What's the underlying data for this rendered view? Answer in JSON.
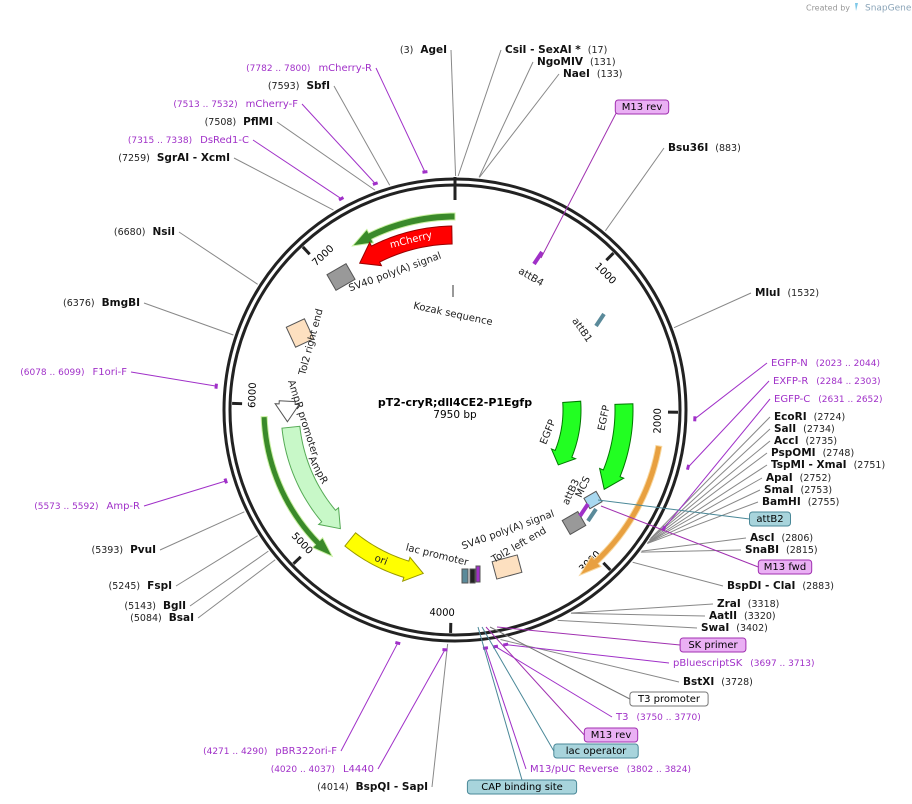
{
  "credit": {
    "prefix": "Created by",
    "brand": "SnapGene"
  },
  "plasmid": {
    "name": "pT2-cryR;dll4CE2-P1Egfp",
    "size": "7950 bp"
  },
  "ruler": [
    "1000",
    "2000",
    "3000",
    "4000",
    "5000",
    "6000",
    "7000"
  ],
  "sites": [
    {
      "name": "AgeI",
      "position": "(3)"
    },
    {
      "name": "CsiI  - SexAI *",
      "position": "(17)"
    },
    {
      "name": "NgoMIV",
      "position": "(131)"
    },
    {
      "name": "NaeI",
      "position": "(133)"
    },
    {
      "name": "Bsu36I",
      "position": "(883)"
    },
    {
      "name": "MluI",
      "position": "(1532)"
    },
    {
      "name": "EcoRI",
      "position": "(2724)"
    },
    {
      "name": "SalI",
      "position": "(2734)"
    },
    {
      "name": "AccI",
      "position": "(2735)"
    },
    {
      "name": "PspOMI",
      "position": "(2748)"
    },
    {
      "name": "TspMI  - XmaI",
      "position": "(2751)"
    },
    {
      "name": "ApaI",
      "position": "(2752)"
    },
    {
      "name": "SmaI",
      "position": "(2753)"
    },
    {
      "name": "BamHI",
      "position": "(2755)"
    },
    {
      "name": "AscI",
      "position": "(2806)"
    },
    {
      "name": "SnaBI",
      "position": "(2815)"
    },
    {
      "name": "BspDI  - ClaI",
      "position": "(2883)"
    },
    {
      "name": "ZraI",
      "position": "(3318)"
    },
    {
      "name": "AatII",
      "position": "(3320)"
    },
    {
      "name": "SwaI",
      "position": "(3402)"
    },
    {
      "name": "BstXI",
      "position": "(3728)"
    },
    {
      "name": "BspQI  - SapI",
      "position": "(4014)"
    },
    {
      "name": "BsaI",
      "position": "(5084)"
    },
    {
      "name": "BglI",
      "position": "(5143)"
    },
    {
      "name": "FspI",
      "position": "(5245)"
    },
    {
      "name": "PvuI",
      "position": "(5393)"
    },
    {
      "name": "BmgBI",
      "position": "(6376)"
    },
    {
      "name": "NsiI",
      "position": "(6680)"
    },
    {
      "name": "SgrAI  - XcmI",
      "position": "(7259)"
    },
    {
      "name": "PflMI",
      "position": "(7508)"
    },
    {
      "name": "SbfI",
      "position": "(7593)"
    }
  ],
  "primers": [
    {
      "name": "mCherry-R",
      "range": "(7782 .. 7800)"
    },
    {
      "name": "mCherry-F",
      "range": "(7513 .. 7532)"
    },
    {
      "name": "DsRed1-C",
      "range": "(7315 .. 7338)"
    },
    {
      "name": "F1ori-F",
      "range": "(6078 .. 6099)"
    },
    {
      "name": "Amp-R",
      "range": "(5573 .. 5592)"
    },
    {
      "name": "pBR322ori-F",
      "range": "(4271 .. 4290)"
    },
    {
      "name": "L4440",
      "range": "(4020 .. 4037)"
    },
    {
      "name": "EGFP-N",
      "range": "(2023 .. 2044)"
    },
    {
      "name": "EXFP-R",
      "range": "(2284 .. 2303)"
    },
    {
      "name": "EGFP-C",
      "range": "(2631 .. 2652)"
    },
    {
      "name": "pBluescriptSK",
      "range": "(3697 .. 3713)"
    },
    {
      "name": "T3",
      "range": "(3750 .. 3770)"
    },
    {
      "name": "M13/pUC Reverse",
      "range": "(3802 .. 3824)"
    }
  ],
  "tagged_features": [
    "M13 rev",
    "attB2",
    "M13 fwd",
    "SK primer",
    "T3 promoter",
    "M13 rev",
    "lac operator",
    "CAP binding site"
  ],
  "map_features": [
    "mCherry",
    "SV40 poly(A) signal",
    "Kozak sequence",
    "attB4",
    "attB1",
    "Tol2 right end",
    "AmpR promoter",
    "AmpR",
    "ori",
    "lac promoter",
    "SV40 poly(A) signal",
    "Tol2 left end",
    "attB3",
    "MCS",
    "EGFP",
    "EGFP"
  ]
}
